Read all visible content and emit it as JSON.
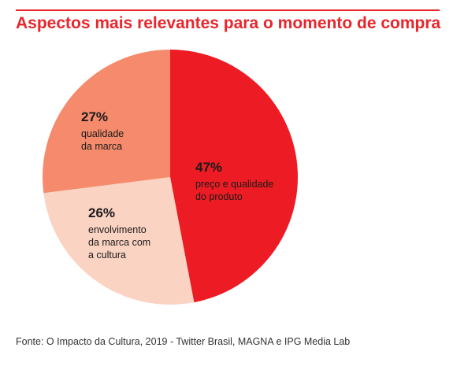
{
  "title": "Aspectos mais relevantes para o momento de compra",
  "source": "Fonte: O Impacto da Cultura, 2019 - Twitter Brasil, MAGNA e IPG Media Lab",
  "chart_data": {
    "type": "pie",
    "title": "Aspectos mais relevantes para o momento de compra",
    "slices": [
      {
        "value": 47,
        "percent_label": "47%",
        "label_lines": [
          "preço e qualidade",
          "do produto"
        ],
        "color": "#ed1c24"
      },
      {
        "value": 26,
        "percent_label": "26%",
        "label_lines": [
          "envolvimento",
          "da marca com",
          "a cultura"
        ],
        "color": "#fbd3c3"
      },
      {
        "value": 27,
        "percent_label": "27%",
        "label_lines": [
          "qualidade",
          "da marca"
        ],
        "color": "#f58b6c"
      }
    ]
  }
}
